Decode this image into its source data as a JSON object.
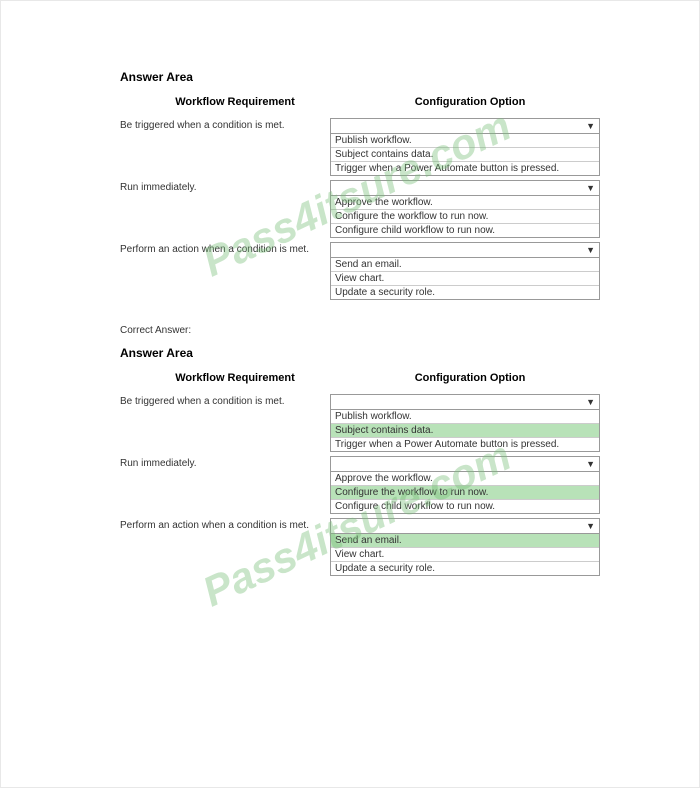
{
  "watermark": "Pass4itsure.com",
  "section1": {
    "title": "Answer Area",
    "header_left": "Workflow Requirement",
    "header_right": "Configuration Option",
    "rows": [
      {
        "label": "Be triggered when a condition is met.",
        "options": [
          {
            "text": "Publish workflow.",
            "highlighted": false
          },
          {
            "text": "Subject contains data.",
            "highlighted": false
          },
          {
            "text": "Trigger when a Power Automate button is pressed.",
            "highlighted": false
          }
        ]
      },
      {
        "label": "Run immediately.",
        "options": [
          {
            "text": "Approve the workflow.",
            "highlighted": false
          },
          {
            "text": "Configure the workflow to run now.",
            "highlighted": false
          },
          {
            "text": "Configure child workflow to run now.",
            "highlighted": false
          }
        ]
      },
      {
        "label": "Perform an action when a condition is met.",
        "options": [
          {
            "text": "Send an email.",
            "highlighted": false
          },
          {
            "text": "View chart.",
            "highlighted": false
          },
          {
            "text": "Update a security role.",
            "highlighted": false
          }
        ]
      }
    ]
  },
  "correct_answer_label": "Correct Answer:",
  "section2": {
    "title": "Answer Area",
    "header_left": "Workflow Requirement",
    "header_right": "Configuration Option",
    "rows": [
      {
        "label": "Be triggered when a condition is met.",
        "options": [
          {
            "text": "Publish workflow.",
            "highlighted": false
          },
          {
            "text": "Subject contains data.",
            "highlighted": true
          },
          {
            "text": "Trigger when a Power Automate button is pressed.",
            "highlighted": false
          }
        ]
      },
      {
        "label": "Run immediately.",
        "options": [
          {
            "text": "Approve the workflow.",
            "highlighted": false
          },
          {
            "text": "Configure the workflow to run now.",
            "highlighted": true
          },
          {
            "text": "Configure child workflow to run now.",
            "highlighted": false
          }
        ]
      },
      {
        "label": "Perform an action when a condition is met.",
        "options": [
          {
            "text": "Send an email.",
            "highlighted": true
          },
          {
            "text": "View chart.",
            "highlighted": false
          },
          {
            "text": "Update a security role.",
            "highlighted": false
          }
        ]
      }
    ]
  }
}
